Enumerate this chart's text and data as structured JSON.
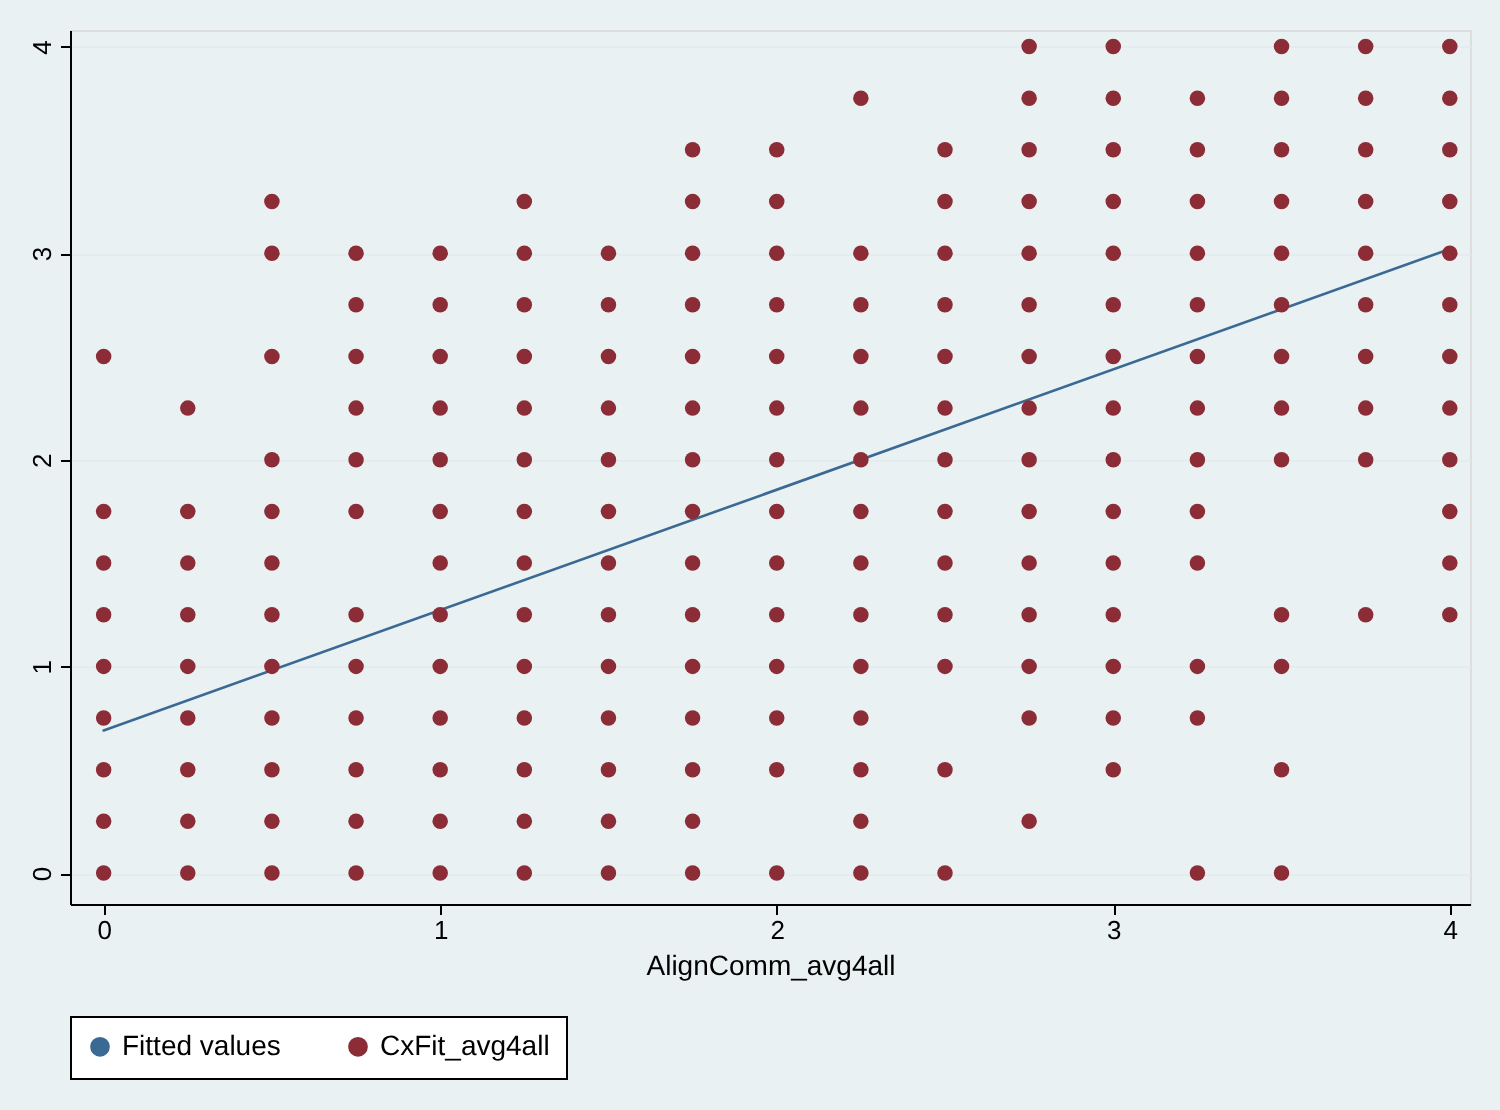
{
  "chart_data": {
    "type": "scatter",
    "xlabel": "AlignComm_avg4all",
    "xlim": [
      -0.1,
      4.06
    ],
    "ylim": [
      -0.15,
      4.08
    ],
    "xticks": [
      0,
      1,
      2,
      3,
      4
    ],
    "yticks": [
      0,
      1,
      2,
      3,
      4
    ],
    "grid": "y",
    "legend": "bottom",
    "series": [
      {
        "name": "Fitted values",
        "type": "line",
        "color": "#3a6a93",
        "x": [
          0,
          4
        ],
        "values": [
          0.69,
          3.02
        ]
      },
      {
        "name": "CxFit_avg4all",
        "color": "#8b2c36",
        "marker": "circle",
        "x": [
          0,
          0,
          0,
          0,
          0,
          0,
          0,
          0,
          0,
          0.25,
          0.25,
          0.25,
          0.25,
          0.25,
          0.25,
          0.25,
          0.25,
          0.25,
          0.5,
          0.5,
          0.5,
          0.5,
          0.5,
          0.5,
          0.5,
          0.5,
          0.5,
          0.5,
          0.5,
          0.5,
          0.75,
          0.75,
          0.75,
          0.75,
          0.75,
          0.75,
          0.75,
          0.75,
          0.75,
          0.75,
          0.75,
          0.75,
          1,
          1,
          1,
          1,
          1,
          1,
          1,
          1,
          1,
          1,
          1,
          1,
          1,
          1.25,
          1.25,
          1.25,
          1.25,
          1.25,
          1.25,
          1.25,
          1.25,
          1.25,
          1.25,
          1.25,
          1.25,
          1.25,
          1.25,
          1.5,
          1.5,
          1.5,
          1.5,
          1.5,
          1.5,
          1.5,
          1.5,
          1.5,
          1.5,
          1.5,
          1.5,
          1.5,
          1.75,
          1.75,
          1.75,
          1.75,
          1.75,
          1.75,
          1.75,
          1.75,
          1.75,
          1.75,
          1.75,
          1.75,
          1.75,
          1.75,
          1.75,
          2,
          2,
          2,
          2,
          2,
          2,
          2,
          2,
          2,
          2,
          2,
          2,
          2,
          2,
          2.25,
          2.25,
          2.25,
          2.25,
          2.25,
          2.25,
          2.25,
          2.25,
          2.25,
          2.25,
          2.25,
          2.25,
          2.25,
          2.25,
          2.5,
          2.5,
          2.5,
          2.5,
          2.5,
          2.5,
          2.5,
          2.5,
          2.5,
          2.5,
          2.5,
          2.5,
          2.5,
          2.75,
          2.75,
          2.75,
          2.75,
          2.75,
          2.75,
          2.75,
          2.75,
          2.75,
          2.75,
          2.75,
          2.75,
          2.75,
          2.75,
          2.75,
          3,
          3,
          3,
          3,
          3,
          3,
          3,
          3,
          3,
          3,
          3,
          3,
          3,
          3,
          3,
          3.25,
          3.25,
          3.25,
          3.25,
          3.25,
          3.25,
          3.25,
          3.25,
          3.25,
          3.25,
          3.25,
          3.25,
          3.25,
          3.5,
          3.5,
          3.5,
          3.5,
          3.5,
          3.5,
          3.5,
          3.5,
          3.5,
          3.5,
          3.5,
          3.5,
          3.5,
          3.75,
          3.75,
          3.75,
          3.75,
          3.75,
          3.75,
          3.75,
          3.75,
          3.75,
          3.75,
          4,
          4,
          4,
          4,
          4,
          4,
          4,
          4,
          4,
          4,
          4,
          4
        ],
        "values": [
          2.5,
          1.75,
          1.5,
          1.25,
          1,
          0.75,
          0.5,
          0.25,
          0,
          2.25,
          1.75,
          1.5,
          1.25,
          1,
          0.75,
          0.5,
          0.25,
          0,
          3.25,
          3,
          2.5,
          2,
          1.75,
          1.5,
          1.25,
          1,
          0.75,
          0.5,
          0.25,
          0,
          3,
          2.75,
          2.5,
          2.25,
          2,
          1.75,
          1.25,
          1,
          0.75,
          0.5,
          0.25,
          0,
          3,
          2.75,
          2.5,
          2.25,
          2,
          1.75,
          1.5,
          1.25,
          1,
          0.75,
          0.5,
          0.25,
          0,
          3.25,
          3,
          2.75,
          2.5,
          2.25,
          2,
          1.75,
          1.5,
          1.25,
          1,
          0.75,
          0.5,
          0.25,
          0,
          3,
          2.75,
          2.5,
          2.25,
          2,
          1.75,
          1.5,
          1.25,
          1,
          0.75,
          0.5,
          0.25,
          0,
          3.5,
          3.25,
          3,
          2.75,
          2.5,
          2.25,
          2,
          1.75,
          1.5,
          1.25,
          1,
          0.75,
          0.5,
          0.25,
          0,
          3.5,
          3.25,
          3,
          2.75,
          2.5,
          2.25,
          2,
          1.75,
          1.5,
          1.25,
          1,
          0.75,
          0.5,
          0,
          3.75,
          3,
          2.75,
          2.5,
          2.25,
          2,
          1.75,
          1.5,
          1.25,
          1,
          0.75,
          0.5,
          0.25,
          0,
          3.5,
          3.25,
          3,
          2.75,
          2.5,
          2.25,
          2,
          1.75,
          1.5,
          1.25,
          1,
          0.5,
          0,
          4,
          3.75,
          3.5,
          3.25,
          3,
          2.75,
          2.5,
          2.25,
          2,
          1.75,
          1.5,
          1.25,
          1,
          0.75,
          0.25,
          4,
          3.75,
          3.5,
          3.25,
          3,
          2.75,
          2.5,
          2.25,
          2,
          1.75,
          1.5,
          1.25,
          1,
          0.75,
          0.5,
          3.75,
          3.5,
          3.25,
          3,
          2.75,
          2.5,
          2.25,
          2,
          1.75,
          1.5,
          1,
          0.75,
          0,
          4,
          3.75,
          3.5,
          3.25,
          3,
          2.75,
          2.5,
          2.25,
          2,
          1.25,
          1,
          0.5,
          0,
          4,
          3.75,
          3.5,
          3.25,
          3,
          2.75,
          2.5,
          2.25,
          2,
          1.25,
          4,
          3.75,
          3.5,
          3.25,
          3,
          2.75,
          2.5,
          2.25,
          2,
          1.75,
          1.5,
          1.25
        ]
      }
    ]
  }
}
